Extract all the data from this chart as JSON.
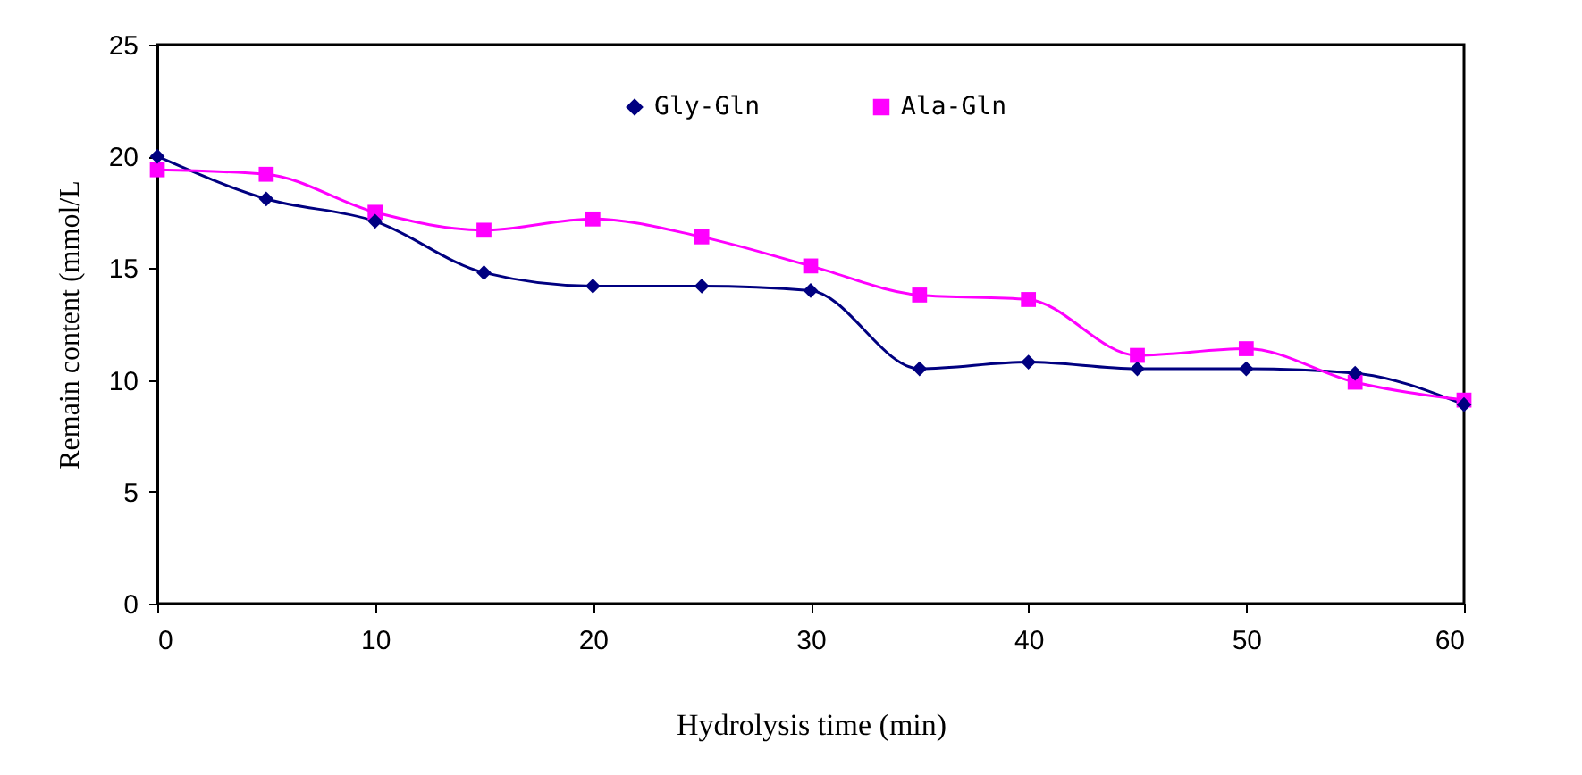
{
  "chart_data": {
    "type": "line",
    "xlabel": "Hydrolysis time (min)",
    "ylabel": "Remain content (mmol/L",
    "x": [
      0,
      5,
      10,
      15,
      20,
      25,
      30,
      35,
      40,
      45,
      50,
      55,
      60
    ],
    "series": [
      {
        "name": "Gly-Gln",
        "color": "#000080",
        "marker": "diamond",
        "values": [
          20.0,
          18.1,
          17.1,
          14.8,
          14.2,
          14.2,
          14.0,
          10.5,
          10.8,
          10.5,
          10.5,
          10.3,
          8.9
        ]
      },
      {
        "name": "Ala-Gln",
        "color": "#ff00ff",
        "marker": "square",
        "values": [
          19.4,
          19.2,
          17.5,
          16.7,
          17.2,
          16.4,
          15.1,
          13.8,
          13.6,
          11.1,
          11.4,
          9.9,
          9.1
        ]
      }
    ],
    "xlim": [
      0,
      60
    ],
    "xticks": [
      0,
      10,
      20,
      30,
      40,
      50,
      60
    ],
    "ylim": [
      0,
      25
    ],
    "yticks": [
      0,
      5,
      10,
      15,
      20,
      25
    ],
    "grid": false,
    "legend": "top right",
    "line_style": "solid"
  }
}
